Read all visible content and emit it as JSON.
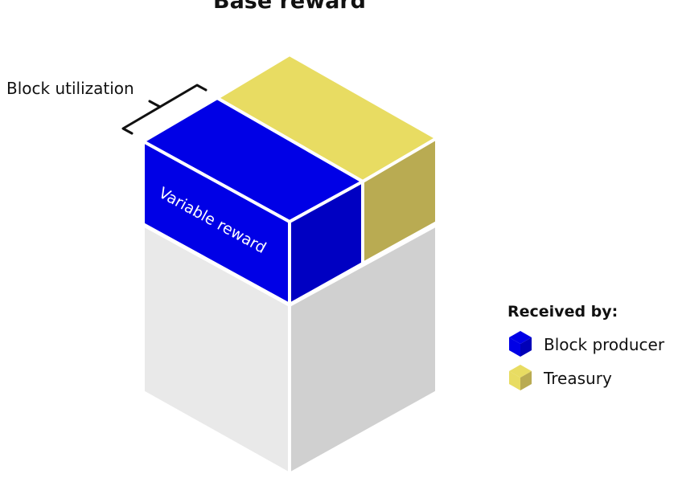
{
  "title": "Base reward",
  "block_utilization_label": "Block utilization",
  "variable_reward_label": "Variable reward",
  "legend": {
    "title": "Received by:",
    "items": [
      {
        "label": "Block producer",
        "icon": "blue-cube-icon",
        "color": "#0000e6"
      },
      {
        "label": "Treasury",
        "icon": "yellow-cube-icon",
        "color": "#e8dc62"
      }
    ]
  },
  "colors": {
    "producer_top": "#0000e6",
    "producer_front": "#0000e6",
    "producer_side": "#0000b8",
    "treasury_top": "#e8dc62",
    "treasury_side": "#b9ab52",
    "base_left": "#e9e9e9",
    "base_right": "#d0d0d0",
    "bracket": "#111111",
    "text": "#111111",
    "edge": "#ffffff"
  }
}
